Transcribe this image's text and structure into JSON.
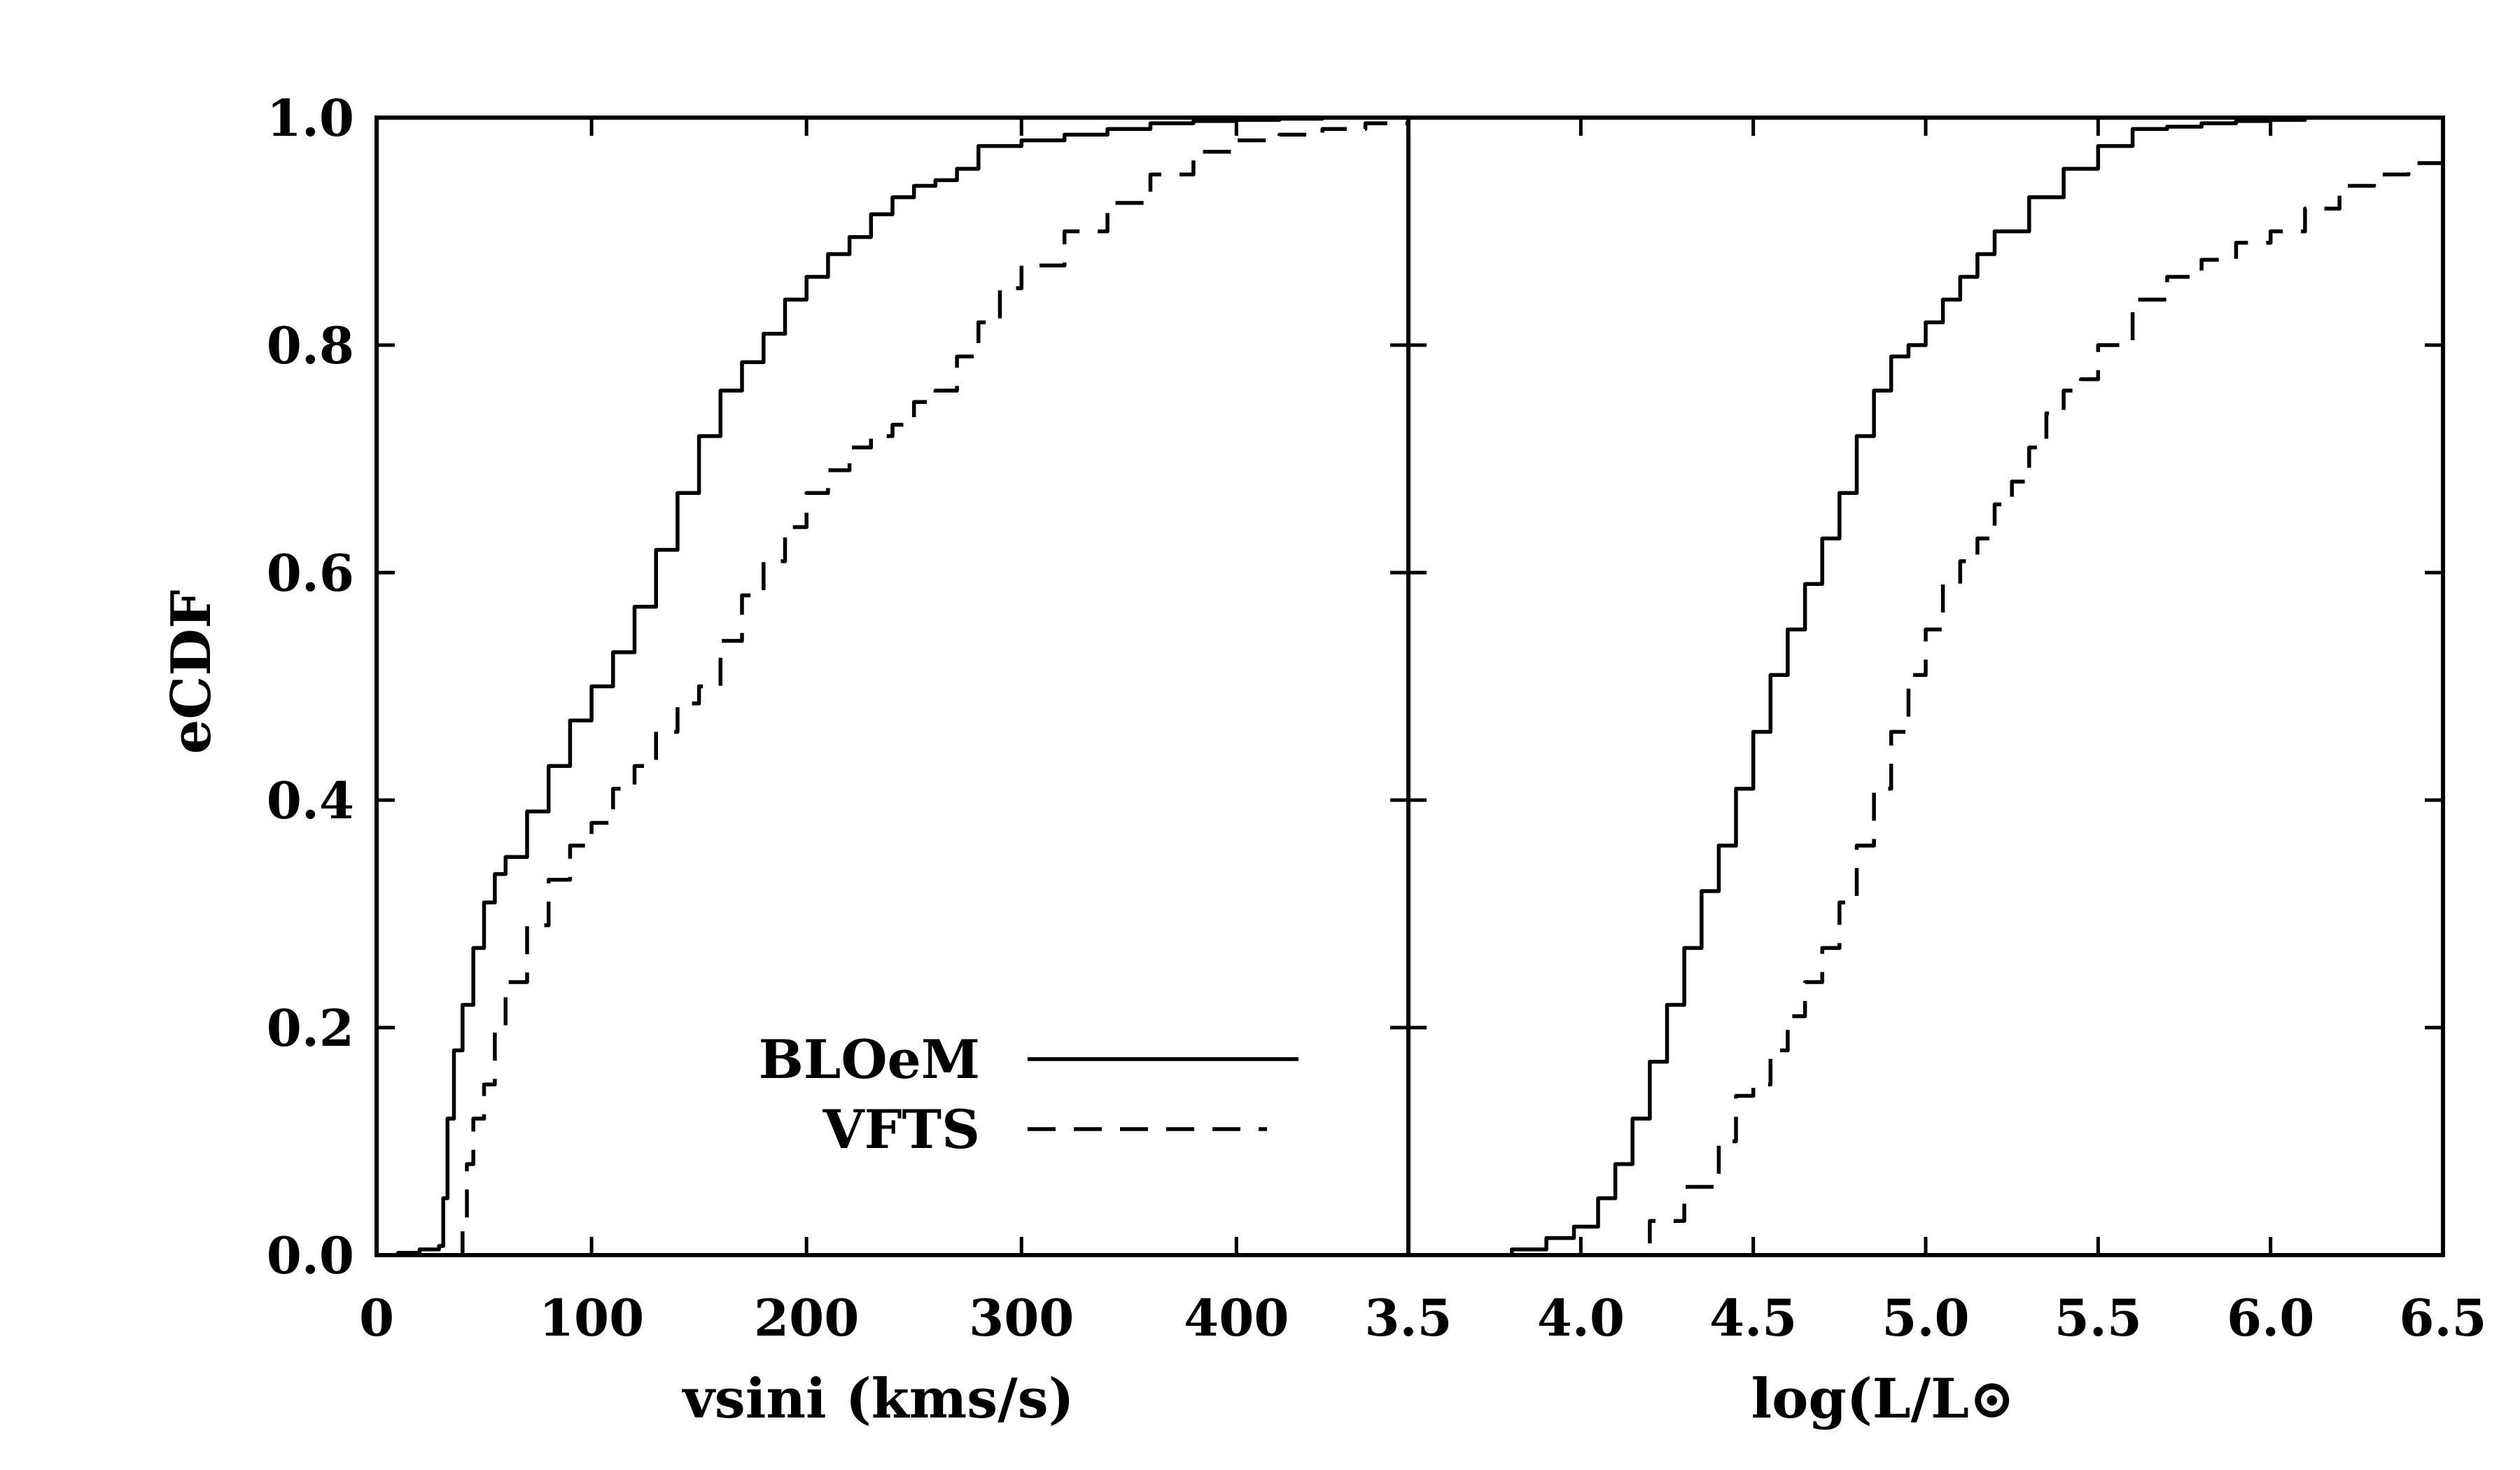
{
  "chart_data": [
    {
      "type": "line",
      "panel": "left",
      "xlabel": "vsini (kms/s)",
      "ylabel": "eCDF",
      "xlim": [
        0,
        480
      ],
      "ylim": [
        0,
        1.0
      ],
      "xticks": [
        0,
        100,
        200,
        300,
        400
      ],
      "yticks": [
        0.0,
        0.2,
        0.4,
        0.6,
        0.8,
        1.0
      ],
      "xtick_labels": [
        "0",
        "100",
        "200",
        "300",
        "400"
      ],
      "ytick_labels": [
        "0.0",
        "0.2",
        "0.4",
        "0.6",
        "0.8",
        "1.0"
      ],
      "series": [
        {
          "name": "BLOeM",
          "style": "solid",
          "x": [
            0,
            10,
            20,
            29,
            31,
            33,
            36,
            40,
            45,
            50,
            55,
            60,
            70,
            80,
            90,
            100,
            110,
            120,
            130,
            140,
            150,
            160,
            170,
            180,
            190,
            200,
            210,
            220,
            230,
            240,
            250,
            260,
            270,
            280,
            300,
            320,
            340,
            360,
            380,
            400,
            420,
            440,
            450
          ],
          "y": [
            0.0,
            0.002,
            0.005,
            0.008,
            0.05,
            0.12,
            0.18,
            0.22,
            0.27,
            0.31,
            0.335,
            0.35,
            0.39,
            0.43,
            0.47,
            0.5,
            0.53,
            0.57,
            0.62,
            0.67,
            0.72,
            0.76,
            0.785,
            0.81,
            0.84,
            0.86,
            0.88,
            0.895,
            0.915,
            0.93,
            0.94,
            0.945,
            0.955,
            0.975,
            0.98,
            0.985,
            0.99,
            0.995,
            0.997,
            0.998,
            0.999,
            1.0,
            1.0
          ]
        },
        {
          "name": "VFTS",
          "style": "dashed",
          "x": [
            38,
            40,
            42,
            45,
            50,
            55,
            60,
            70,
            80,
            90,
            100,
            110,
            120,
            130,
            140,
            150,
            160,
            170,
            180,
            190,
            200,
            210,
            220,
            230,
            240,
            250,
            260,
            270,
            280,
            290,
            300,
            320,
            340,
            360,
            380,
            400,
            420,
            440,
            460,
            480
          ],
          "y": [
            0.0,
            0.03,
            0.08,
            0.12,
            0.15,
            0.2,
            0.24,
            0.29,
            0.33,
            0.36,
            0.38,
            0.41,
            0.43,
            0.46,
            0.485,
            0.5,
            0.54,
            0.58,
            0.61,
            0.64,
            0.67,
            0.69,
            0.71,
            0.72,
            0.73,
            0.75,
            0.76,
            0.79,
            0.82,
            0.85,
            0.87,
            0.9,
            0.925,
            0.95,
            0.97,
            0.98,
            0.985,
            0.99,
            0.995,
            0.998
          ]
        }
      ],
      "legend": {
        "position": "bottom-right",
        "entries": [
          {
            "label": "BLOeM",
            "style": "solid"
          },
          {
            "label": "VFTS",
            "style": "dashed"
          }
        ]
      }
    },
    {
      "type": "line",
      "panel": "right",
      "xlabel": "log(L/L⊙",
      "ylabel": "",
      "xlim": [
        3.5,
        6.5
      ],
      "ylim": [
        0,
        1.0
      ],
      "xticks": [
        3.5,
        4.0,
        4.5,
        5.0,
        5.5,
        6.0,
        6.5
      ],
      "xtick_labels": [
        "3.5",
        "4.0",
        "4.5",
        "5.0",
        "5.5",
        "6.0",
        "6.5"
      ],
      "series": [
        {
          "name": "BLOeM",
          "style": "solid",
          "x": [
            3.73,
            3.8,
            3.9,
            3.98,
            4.05,
            4.1,
            4.15,
            4.2,
            4.25,
            4.3,
            4.35,
            4.4,
            4.45,
            4.5,
            4.55,
            4.6,
            4.65,
            4.7,
            4.75,
            4.8,
            4.85,
            4.9,
            4.95,
            5.0,
            5.05,
            5.1,
            5.15,
            5.2,
            5.3,
            5.4,
            5.5,
            5.6,
            5.7,
            5.8,
            5.9,
            6.0,
            6.1,
            6.15
          ],
          "y": [
            0.0,
            0.005,
            0.015,
            0.025,
            0.05,
            0.08,
            0.12,
            0.17,
            0.22,
            0.27,
            0.32,
            0.36,
            0.41,
            0.46,
            0.51,
            0.55,
            0.59,
            0.63,
            0.67,
            0.72,
            0.76,
            0.79,
            0.8,
            0.82,
            0.84,
            0.86,
            0.88,
            0.9,
            0.93,
            0.955,
            0.975,
            0.99,
            0.992,
            0.995,
            0.997,
            0.998,
            1.0,
            1.0
          ]
        },
        {
          "name": "VFTS",
          "style": "dashed",
          "x": [
            4.1,
            4.2,
            4.3,
            4.4,
            4.45,
            4.5,
            4.55,
            4.6,
            4.65,
            4.7,
            4.75,
            4.8,
            4.85,
            4.9,
            4.95,
            5.0,
            5.05,
            5.1,
            5.15,
            5.2,
            5.25,
            5.3,
            5.35,
            5.4,
            5.45,
            5.5,
            5.6,
            5.7,
            5.8,
            5.9,
            6.0,
            6.1,
            6.2,
            6.3,
            6.4,
            6.5
          ],
          "y": [
            0.0,
            0.03,
            0.06,
            0.1,
            0.14,
            0.15,
            0.18,
            0.21,
            0.24,
            0.27,
            0.31,
            0.36,
            0.41,
            0.46,
            0.51,
            0.55,
            0.59,
            0.61,
            0.63,
            0.66,
            0.68,
            0.71,
            0.74,
            0.76,
            0.77,
            0.8,
            0.84,
            0.86,
            0.875,
            0.89,
            0.9,
            0.92,
            0.94,
            0.95,
            0.96,
            0.97
          ]
        }
      ]
    }
  ]
}
